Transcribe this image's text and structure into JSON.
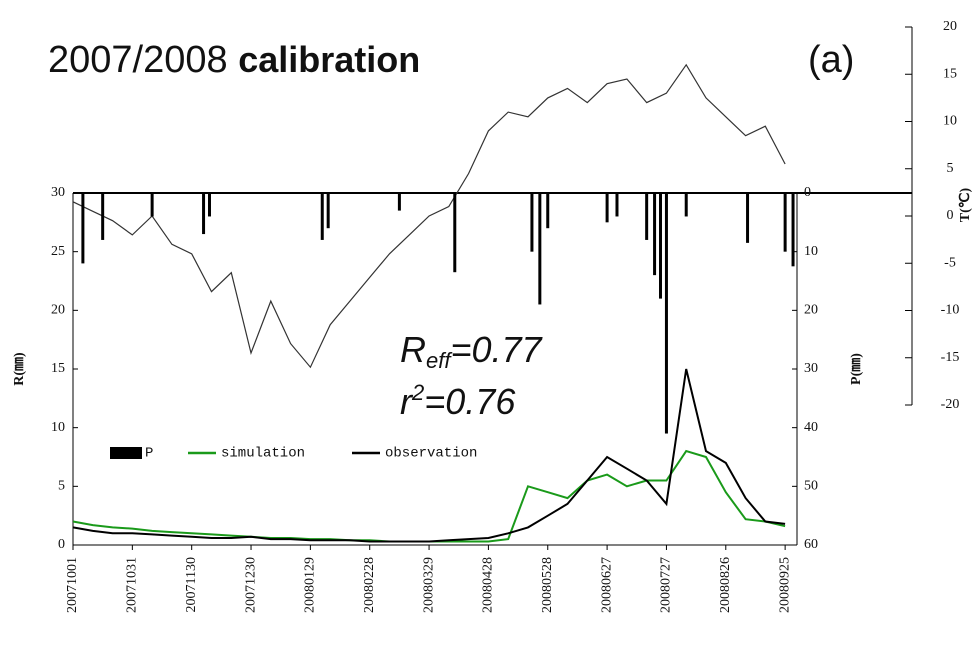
{
  "chart_data": {
    "type": "line",
    "title": "2007/2008",
    "title_bold": "calibration",
    "panel_label": "(a)",
    "annotations": [
      {
        "symbol": "R",
        "subscript": "eff",
        "text": "=0.77"
      },
      {
        "symbol": "r",
        "superscript": "2",
        "text": "=0.76"
      }
    ],
    "y_label": "R(㎜)",
    "y2_label": "P(㎜)",
    "y3_label": "T(℃)",
    "xlim": [
      "20071001",
      "20081001"
    ],
    "xticks": [
      "20071001",
      "20071031",
      "20071130",
      "20071230",
      "20080129",
      "20080228",
      "20080329",
      "20080428",
      "20080528",
      "20080627",
      "20080727",
      "20080826",
      "20080925"
    ],
    "ylim": [
      0,
      30
    ],
    "yticks": [
      0,
      5,
      10,
      15,
      20,
      25,
      30
    ],
    "y2lim": [
      0,
      60
    ],
    "y2ticks": [
      0,
      10,
      20,
      30,
      40,
      50,
      60
    ],
    "y3lim": [
      -20,
      20
    ],
    "y3ticks": [
      -20,
      -15,
      -10,
      -5,
      0,
      5,
      10,
      15,
      20
    ],
    "temperature": {
      "axis": "y3",
      "color": "#333333",
      "x": [
        "20071001",
        "20071011",
        "20071021",
        "20071031",
        "20071110",
        "20071120",
        "20071130",
        "20071210",
        "20071220",
        "20071230",
        "20080109",
        "20080119",
        "20080129",
        "20080208",
        "20080218",
        "20080228",
        "20080309",
        "20080319",
        "20080329",
        "20080408",
        "20080418",
        "20080428",
        "20080508",
        "20080518",
        "20080528",
        "20080607",
        "20080617",
        "20080627",
        "20080707",
        "20080717",
        "20080727",
        "20080806",
        "20080816",
        "20080826",
        "20080905",
        "20080915",
        "20080925"
      ],
      "values": [
        1.5,
        0.5,
        -0.5,
        -2,
        0,
        -3,
        -4,
        -8,
        -6,
        -14.5,
        -9,
        -13.5,
        -16,
        -11.5,
        -9,
        -6.5,
        -4,
        -2,
        0,
        1,
        4.5,
        9,
        11,
        10.5,
        12.5,
        13.5,
        12,
        14,
        14.5,
        12,
        13,
        16,
        12.5,
        10.5,
        8.5,
        9.5,
        5.5
      ]
    },
    "series": [
      {
        "name": "P",
        "kind": "bar",
        "axis": "y2",
        "color": "#000000",
        "x": [
          "20071006",
          "20071016",
          "20071110",
          "20071206",
          "20071209",
          "20080204",
          "20080207",
          "20080314",
          "20080411",
          "20080520",
          "20080524",
          "20080528",
          "20080627",
          "20080702",
          "20080717",
          "20080721",
          "20080724",
          "20080727",
          "20080806",
          "20080906",
          "20080925",
          "20080929"
        ],
        "values": [
          12,
          8,
          4,
          7,
          4,
          8,
          6,
          3,
          13.5,
          10,
          19,
          6,
          5,
          4,
          8,
          14,
          18,
          41,
          4,
          8.5,
          10,
          12.5
        ]
      },
      {
        "name": "simulation",
        "kind": "line",
        "axis": "y",
        "color": "#1a9a1a",
        "x": [
          "20071001",
          "20071011",
          "20071021",
          "20071031",
          "20071110",
          "20071120",
          "20071130",
          "20071210",
          "20071220",
          "20071230",
          "20080109",
          "20080119",
          "20080129",
          "20080208",
          "20080218",
          "20080228",
          "20080309",
          "20080319",
          "20080329",
          "20080408",
          "20080418",
          "20080428",
          "20080508",
          "20080518",
          "20080528",
          "20080607",
          "20080617",
          "20080627",
          "20080707",
          "20080717",
          "20080727",
          "20080806",
          "20080816",
          "20080826",
          "20080905",
          "20080915",
          "20080925"
        ],
        "values": [
          2.0,
          1.7,
          1.5,
          1.4,
          1.2,
          1.1,
          1.0,
          0.9,
          0.8,
          0.7,
          0.6,
          0.6,
          0.5,
          0.5,
          0.4,
          0.4,
          0.3,
          0.3,
          0.3,
          0.3,
          0.3,
          0.3,
          0.5,
          5.0,
          4.5,
          4.0,
          5.5,
          6.0,
          5.0,
          5.5,
          5.5,
          8.0,
          7.5,
          4.5,
          2.2,
          2.0,
          1.6
        ]
      },
      {
        "name": "observation",
        "kind": "line",
        "axis": "y",
        "color": "#000000",
        "x": [
          "20071001",
          "20071011",
          "20071021",
          "20071031",
          "20071110",
          "20071120",
          "20071130",
          "20071210",
          "20071220",
          "20071230",
          "20080109",
          "20080119",
          "20080129",
          "20080208",
          "20080218",
          "20080228",
          "20080309",
          "20080319",
          "20080329",
          "20080408",
          "20080418",
          "20080428",
          "20080508",
          "20080518",
          "20080528",
          "20080607",
          "20080617",
          "20080627",
          "20080707",
          "20080717",
          "20080727",
          "20080806",
          "20080816",
          "20080826",
          "20080905",
          "20080915",
          "20080925"
        ],
        "values": [
          1.5,
          1.2,
          1.0,
          1.0,
          0.9,
          0.8,
          0.7,
          0.6,
          0.6,
          0.7,
          0.5,
          0.5,
          0.4,
          0.4,
          0.4,
          0.3,
          0.3,
          0.3,
          0.3,
          0.4,
          0.5,
          0.6,
          1.0,
          1.5,
          2.5,
          3.5,
          5.5,
          7.5,
          6.5,
          5.5,
          3.5,
          15,
          8,
          7,
          4,
          2,
          1.8
        ]
      }
    ]
  }
}
